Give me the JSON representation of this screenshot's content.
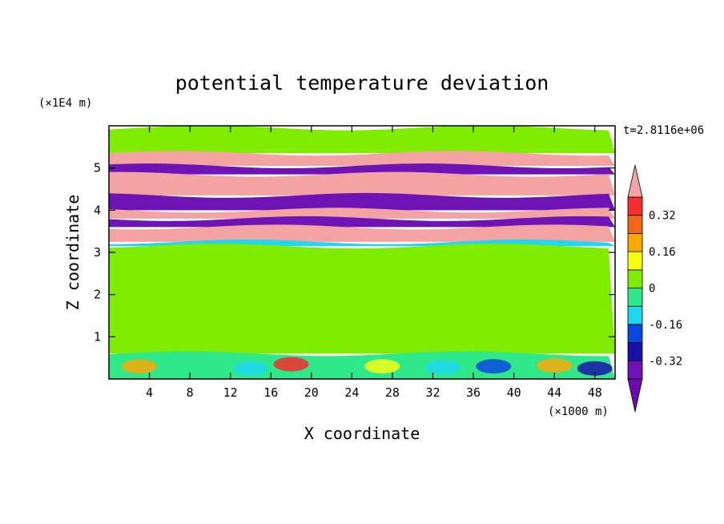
{
  "chart_data": {
    "type": "heatmap",
    "title": "potential temperature deviation",
    "xlabel": "X coordinate",
    "ylabel": "Z coordinate",
    "x_unit": "(×1000 m)",
    "y_unit": "(×1E4 m)",
    "time_label": "t=2.8116e+06",
    "xlim": [
      0,
      50
    ],
    "ylim": [
      0,
      6
    ],
    "x_ticks": [
      4,
      8,
      12,
      16,
      20,
      24,
      28,
      32,
      36,
      40,
      44,
      48
    ],
    "y_ticks": [
      1,
      2,
      3,
      4,
      5
    ],
    "colorbar": {
      "levels": [
        -0.4,
        -0.32,
        -0.24,
        -0.16,
        -0.08,
        0,
        0.08,
        0.16,
        0.24,
        0.32,
        0.4
      ],
      "colors": [
        "#6a0dad",
        "#6f14b4",
        "#1a12a8",
        "#0a46e0",
        "#1fd8f0",
        "#2ee88a",
        "#7fec00",
        "#f5ff10",
        "#f9a804",
        "#f26616",
        "#f62d2d",
        "#f4a3a3"
      ],
      "tick_labels": [
        "0.32",
        "0.16",
        "0",
        "-0.16",
        "-0.32"
      ],
      "tick_values": [
        0.32,
        0.16,
        0,
        -0.16,
        -0.32
      ]
    },
    "bands": [
      {
        "z": [
          5.35,
          5.95
        ],
        "color": "#7fec00"
      },
      {
        "z": [
          5.05,
          5.35
        ],
        "color": "#f4a3a3"
      },
      {
        "z": [
          4.85,
          5.05
        ],
        "color": "#6f14b4"
      },
      {
        "z": [
          4.35,
          4.85
        ],
        "color": "#f4a3a3"
      },
      {
        "z": [
          4.0,
          4.35
        ],
        "color": "#6f14b4"
      },
      {
        "z": [
          3.8,
          4.0
        ],
        "color": "#f4a3a3"
      },
      {
        "z": [
          3.6,
          3.8
        ],
        "color": "#6f14b4"
      },
      {
        "z": [
          3.25,
          3.6
        ],
        "color": "#f4a3a3"
      },
      {
        "z": [
          3.15,
          3.25
        ],
        "color": "#1fd8f0"
      },
      {
        "z": [
          0.6,
          3.15
        ],
        "color": "#7fec00"
      },
      {
        "z": [
          0,
          0.6
        ],
        "color": "#2ee88a"
      }
    ]
  }
}
